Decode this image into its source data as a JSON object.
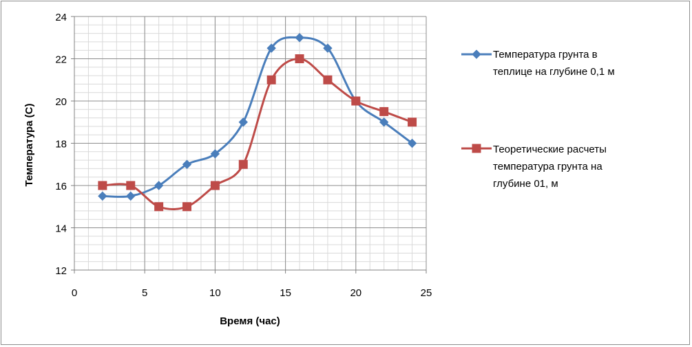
{
  "chart_data": {
    "type": "line",
    "title": "",
    "xlabel": "Время (час)",
    "ylabel": "Температура (С)",
    "xlim": [
      0,
      25
    ],
    "ylim": [
      12,
      24
    ],
    "x_major_ticks": [
      0,
      5,
      10,
      15,
      20,
      25
    ],
    "y_major_ticks": [
      12,
      14,
      16,
      18,
      20,
      22,
      24
    ],
    "x_minor_step": 1,
    "y_minor_step": 0.4,
    "grid": true,
    "legend_position": "right",
    "series": [
      {
        "name": "Температура грунта в теплице на глубине 0,1 м",
        "legend_lines": [
          "Температура грунта в",
          "теплице на глубине 0,1 м"
        ],
        "color": "#4a7ebb",
        "marker": "diamond",
        "x": [
          2,
          4,
          6,
          8,
          10,
          12,
          14,
          16,
          18,
          20,
          22,
          24
        ],
        "y": [
          15.5,
          15.5,
          16,
          17,
          17.5,
          19,
          22.5,
          23,
          22.5,
          20,
          19,
          18
        ]
      },
      {
        "name": "Теоретические расчеты температура грунта на глубине 01, м",
        "legend_lines": [
          "Теоретические расчеты",
          "температура грунта на",
          "глубине 01, м"
        ],
        "color": "#be4b48",
        "marker": "square",
        "x": [
          2,
          4,
          6,
          8,
          10,
          12,
          14,
          16,
          18,
          20,
          22,
          24
        ],
        "y": [
          16,
          16,
          15,
          15,
          16,
          17,
          21,
          22,
          21,
          20,
          19.5,
          19
        ]
      }
    ]
  }
}
